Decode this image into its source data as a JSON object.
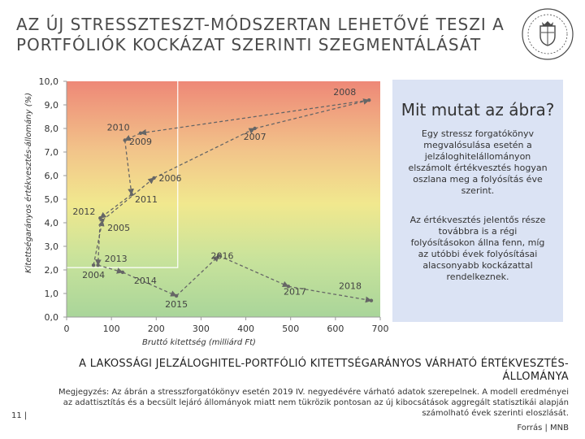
{
  "header": {
    "title_line1": "AZ ÚJ STRESSZTESZT-MÓDSZERTAN LEHETŐVÉ TESZI A",
    "title_line2": "PORTFÓLIÓK KOCKÁZAT SZERINTI SZEGMENTÁLÁSÁT"
  },
  "infobox": {
    "heading": "Mit mutat az ábra?",
    "paragraph1": "Egy stressz forgatókönyv megvalósulása esetén a jelzáloghitelállományon elszámolt értékvesztés hogyan oszlana meg a folyósítás éve szerint.",
    "paragraph2": "Az értékvesztés jelentős része továbbra is a régi folyósításokon állna fenn, míg az utóbbi évek folyósításai alacsonyabb kockázattal rendelkeznek."
  },
  "subtitle": "A LAKOSSÁGI JELZÁLOGHITEL-PORTFÓLIÓ KITETTSÉGARÁNYOS VÁRHATÓ ÉRTÉKVESZTÉS-ÁLLOMÁNYA",
  "footer": {
    "note": "Megjegyzés: Az ábrán a stresszforgatókönyv esetén 2019 IV. negyedévére várható adatok szerepelnek. A modell eredményei az adattisztítás és a becsült lejáró állományok miatt nem tükrözik pontosan az új kibocsátások aggregált statisztikái alapján számolható évek szerinti eloszlását.",
    "source": "Forrás | MNB",
    "page_number": "11 |"
  },
  "colors": {
    "top": "#ee8877",
    "upper_mid": "#f2c58a",
    "mid": "#f1e88e",
    "lower": "#c9e39b",
    "bottom": "#a9d59a",
    "series": "#666666",
    "infobox": "#dbe3f4",
    "logo": "#4a4a4a"
  },
  "logo_icon": "mnb-seal-icon",
  "chart_data": {
    "type": "scatter",
    "title": "",
    "xlabel": "Bruttó kitettség (milliárd Ft)",
    "ylabel": "Kitettségarányos értékvesztés-állomány (%)",
    "xlim": [
      0,
      700
    ],
    "ylim": [
      0,
      10
    ],
    "xticks": [
      "0",
      "100",
      "200",
      "300",
      "400",
      "500",
      "600",
      "700"
    ],
    "yticks": [
      "0,0",
      "1,0",
      "2,0",
      "3,0",
      "4,0",
      "5,0",
      "6,0",
      "7,0",
      "8,0",
      "9,0",
      "10,0"
    ],
    "grid": false,
    "connected": true,
    "points": [
      {
        "label": "2004",
        "x": 60,
        "y": 2.2
      },
      {
        "label": "2005",
        "x": 80,
        "y": 4.1
      },
      {
        "label": "2006",
        "x": 195,
        "y": 5.9
      },
      {
        "label": "2007",
        "x": 420,
        "y": 8.0
      },
      {
        "label": "2008",
        "x": 675,
        "y": 9.2
      },
      {
        "label": "2009",
        "x": 165,
        "y": 7.8
      },
      {
        "label": "2010",
        "x": 130,
        "y": 7.5
      },
      {
        "label": "2011",
        "x": 145,
        "y": 5.2
      },
      {
        "label": "2012",
        "x": 75,
        "y": 4.2
      },
      {
        "label": "2013",
        "x": 70,
        "y": 2.2
      },
      {
        "label": "2014",
        "x": 125,
        "y": 1.9
      },
      {
        "label": "2015",
        "x": 245,
        "y": 0.9
      },
      {
        "label": "2016",
        "x": 340,
        "y": 2.6
      },
      {
        "label": "2017",
        "x": 495,
        "y": 1.3
      },
      {
        "label": "2018",
        "x": 680,
        "y": 0.7
      }
    ]
  }
}
